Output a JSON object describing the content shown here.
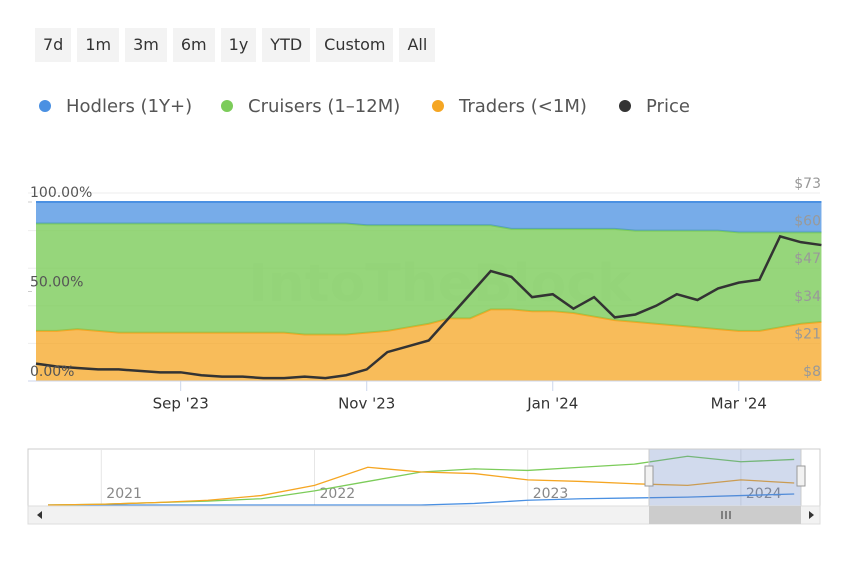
{
  "range_buttons": [
    "7d",
    "1m",
    "3m",
    "6m",
    "1y",
    "YTD",
    "Custom",
    "All"
  ],
  "chart_data": {
    "type": "stacked-area-line",
    "watermark": "IntoTheBlock",
    "categories": [
      null,
      null,
      null,
      null,
      null,
      null,
      null,
      "Sep '23",
      null,
      null,
      null,
      null,
      null,
      null,
      null,
      null,
      "Nov '23",
      null,
      null,
      null,
      null,
      null,
      null,
      null,
      null,
      "Jan '24",
      null,
      null,
      null,
      null,
      null,
      null,
      null,
      null,
      "Mar '24",
      null,
      null,
      null,
      null
    ],
    "series": [
      {
        "name": "Hodlers (1Y+)",
        "color": "#4a90e2",
        "values": [
          12,
          12,
          12,
          12,
          12,
          12,
          12,
          12,
          12,
          12,
          12,
          12,
          12,
          12,
          12,
          12,
          13,
          13,
          13,
          13,
          13,
          13,
          13,
          15,
          15,
          15,
          15,
          15,
          15,
          16,
          16,
          16,
          16,
          16,
          17,
          17,
          17,
          17,
          17
        ]
      },
      {
        "name": "Cruisers (1–12M)",
        "color": "#7ccc5a",
        "values": [
          60,
          60,
          59,
          60,
          61,
          61,
          61,
          61,
          61,
          61,
          61,
          61,
          61,
          62,
          62,
          62,
          60,
          59,
          57,
          55,
          52,
          52,
          47,
          45,
          46,
          46,
          47,
          49,
          51,
          51,
          52,
          53,
          54,
          55,
          55,
          55,
          53,
          51,
          50
        ]
      },
      {
        "name": "Traders (<1M)",
        "color": "#f5a623",
        "values": [
          28,
          28,
          29,
          28,
          27,
          27,
          27,
          27,
          27,
          27,
          27,
          27,
          27,
          26,
          26,
          26,
          27,
          28,
          30,
          32,
          35,
          35,
          40,
          40,
          39,
          39,
          38,
          36,
          34,
          33,
          32,
          31,
          30,
          29,
          28,
          28,
          30,
          32,
          33
        ]
      },
      {
        "name": "Price",
        "color": "#333333",
        "axis": "y2",
        "values": [
          14,
          13,
          12.5,
          12,
          12,
          11.5,
          11,
          11,
          10,
          9.5,
          9.5,
          9,
          9,
          9.5,
          9,
          10,
          12,
          18,
          20,
          22,
          30,
          38,
          46,
          44,
          37,
          38,
          33,
          37,
          30,
          31,
          34,
          38,
          36,
          40,
          42,
          43,
          58,
          56,
          55
        ]
      }
    ],
    "ylim": [
      0,
      100
    ],
    "yticks": [
      {
        "value": 0,
        "label": "0.00%"
      },
      {
        "value": 50,
        "label": "50.00%"
      },
      {
        "value": 100,
        "label": "100.00%"
      }
    ],
    "y2lim": [
      8,
      73
    ],
    "y2ticks": [
      {
        "value": 8,
        "label": "$8"
      },
      {
        "value": 21,
        "label": "$21"
      },
      {
        "value": 34,
        "label": "$34"
      },
      {
        "value": 47,
        "label": "$47"
      },
      {
        "value": 60,
        "label": "$60"
      },
      {
        "value": 73,
        "label": "$73"
      }
    ],
    "grid": true,
    "navigator": {
      "categories": [
        null,
        "2021",
        null,
        null,
        null,
        "2022",
        null,
        null,
        null,
        "2023",
        null,
        null,
        null,
        "2024",
        null
      ],
      "ylim": [
        0,
        70
      ],
      "series": [
        {
          "color": "#4a90e2",
          "values": [
            0,
            0,
            0,
            0,
            0,
            0,
            0,
            0,
            2,
            6,
            8,
            9,
            10,
            12,
            14
          ]
        },
        {
          "color": "#7ccc5a",
          "values": [
            0,
            1,
            3,
            5,
            8,
            18,
            30,
            42,
            46,
            44,
            48,
            52,
            62,
            55,
            58
          ]
        },
        {
          "color": "#f5a623",
          "values": [
            0,
            1,
            3,
            6,
            12,
            25,
            48,
            42,
            40,
            32,
            30,
            27,
            25,
            32,
            28
          ]
        }
      ]
    }
  }
}
